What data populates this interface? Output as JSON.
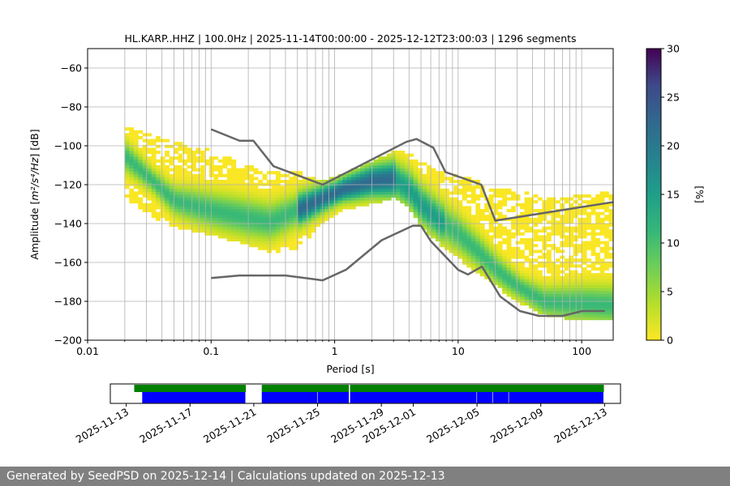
{
  "title": "HL.KARP..HHZ | 100.0Hz | 2025-11-14T00:00:00 - 2025-12-12T23:00:03 | 1296 segments",
  "footer": {
    "text": "Generated by SeedPSD on 2025-12-14 | Calculations updated on 2025-12-13"
  },
  "colors": {
    "noise_model": "#666666",
    "grid": "#b0b0b0",
    "coverage_data": "#0000ff",
    "coverage_segments": "#008000"
  },
  "chart_data": [
    {
      "type": "heatmap",
      "xlabel": "Period [s]",
      "ylabel_prefix": "Amplitude [",
      "ylabel_units": "m²/s⁴/Hz",
      "ylabel_suffix": "] [dB]",
      "xscale": "log",
      "xlim": [
        0.01,
        180
      ],
      "ylim": [
        -200,
        -50
      ],
      "x_ticks": [
        {
          "value": 0.01,
          "label": "0.01"
        },
        {
          "value": 0.1,
          "label": "0.1"
        },
        {
          "value": 1,
          "label": "1"
        },
        {
          "value": 10,
          "label": "10"
        },
        {
          "value": 100,
          "label": "100"
        }
      ],
      "y_ticks": [
        {
          "value": -60,
          "label": "−60"
        },
        {
          "value": -80,
          "label": "−80"
        },
        {
          "value": -100,
          "label": "−100"
        },
        {
          "value": -120,
          "label": "−120"
        },
        {
          "value": -140,
          "label": "−140"
        },
        {
          "value": -160,
          "label": "−160"
        },
        {
          "value": -180,
          "label": "−180"
        },
        {
          "value": -200,
          "label": "−200"
        }
      ],
      "grid": true,
      "colormap": "viridis_r",
      "colorbar": {
        "label": "[%]",
        "range": [
          0,
          30
        ],
        "ticks": [
          {
            "value": 0,
            "label": "0"
          },
          {
            "value": 5,
            "label": "5"
          },
          {
            "value": 10,
            "label": "10"
          },
          {
            "value": 15,
            "label": "15"
          },
          {
            "value": 20,
            "label": "20"
          },
          {
            "value": 25,
            "label": "25"
          },
          {
            "value": 30,
            "label": "30"
          }
        ]
      },
      "mode_curve": {
        "period": [
          0.02,
          0.03,
          0.05,
          0.1,
          0.2,
          0.3,
          0.5,
          0.8,
          1.2,
          2,
          3,
          4,
          5,
          7,
          10,
          15,
          20,
          30,
          50,
          80,
          100,
          180
        ],
        "power": [
          -105,
          -115,
          -128,
          -133,
          -137,
          -139,
          -133,
          -127,
          -122,
          -118,
          -117,
          -122,
          -130,
          -138,
          -145,
          -155,
          -163,
          -172,
          -180,
          -181,
          -181,
          -182
        ]
      },
      "distribution_bounds": {
        "period": [
          0.02,
          0.03,
          0.05,
          0.1,
          0.2,
          0.3,
          0.5,
          0.8,
          1.2,
          2,
          3,
          4,
          5,
          7,
          10,
          15,
          20,
          30,
          50,
          80,
          100,
          180
        ],
        "upper": [
          -90,
          -93,
          -98,
          -102,
          -110,
          -113,
          -113,
          -118,
          -114,
          -108,
          -103,
          -103,
          -108,
          -113,
          -115,
          -118,
          -122,
          -123,
          -126,
          -126,
          -125,
          -123
        ],
        "lower": [
          -127,
          -135,
          -142,
          -146,
          -151,
          -155,
          -153,
          -140,
          -133,
          -130,
          -127,
          -132,
          -142,
          -150,
          -158,
          -166,
          -172,
          -180,
          -187,
          -189,
          -189,
          -190
        ]
      },
      "noise_models": [
        {
          "period": [
            0.1,
            0.17,
            0.22,
            0.32,
            0.8,
            3.8,
            4.6,
            6.3,
            7.9,
            15.4,
            20,
            354.8
          ],
          "power": [
            -91.5,
            -97.4,
            -97.4,
            -110.5,
            -120,
            -98,
            -96.5,
            -101,
            -113.5,
            -120,
            -138.5,
            -126
          ]
        },
        {
          "period": [
            0.1,
            0.17,
            0.4,
            0.8,
            1.24,
            2.4,
            4.3,
            5,
            6,
            10,
            12,
            15.6,
            21.9,
            31.6,
            45,
            70,
            101,
            154
          ],
          "power": [
            -168,
            -166.7,
            -166.7,
            -169.2,
            -163.7,
            -148.6,
            -141.1,
            -141.1,
            -149,
            -163.8,
            -166.2,
            -162.1,
            -177.5,
            -185,
            -187.5,
            -187.5,
            -185,
            -185
          ]
        }
      ]
    },
    {
      "type": "timeline",
      "x_ticks": [
        "2025-11-13",
        "2025-11-17",
        "2025-11-21",
        "2025-11-25",
        "2025-11-29",
        "2025-12-01",
        "2025-12-05",
        "2025-12-09",
        "2025-12-13"
      ],
      "range": [
        "2025-11-12",
        "2025-12-14"
      ],
      "segments_bar": [
        [
          "2025-11-13T12:00",
          "2025-11-20T12:00"
        ],
        [
          "2025-11-21T12:00",
          "2025-12-12T23:00"
        ]
      ],
      "data_bar": [
        [
          "2025-11-14T00:00",
          "2025-11-20T12:00"
        ],
        [
          "2025-11-21T12:00",
          "2025-11-25T00:00"
        ],
        [
          "2025-11-25T00:00",
          "2025-11-27T00:00"
        ],
        [
          "2025-11-27T00:00",
          "2025-12-05T00:00"
        ],
        [
          "2025-12-05T00:00",
          "2025-12-06T00:00"
        ],
        [
          "2025-12-06T00:00",
          "2025-12-07T00:00"
        ],
        [
          "2025-12-07T00:00",
          "2025-12-12T23:00"
        ]
      ],
      "gaps": [
        "2025-11-27T00:00"
      ]
    }
  ]
}
